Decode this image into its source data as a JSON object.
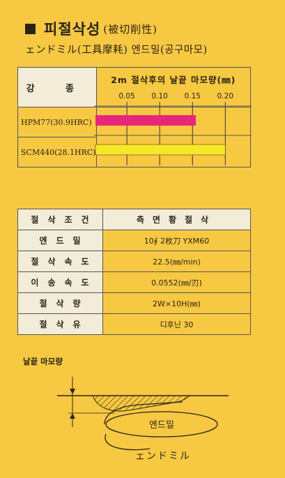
{
  "title": {
    "main": "피절삭성",
    "paren": "(被切削性)"
  },
  "subtitle": "ェンドミル(工具摩耗) 엔드밀(공구마모)",
  "wear_table": {
    "header_left": "강 종",
    "header_chart": "2m 절삭후의 날끝 마모량(㎜)",
    "rows": [
      {
        "label": "HPM77(30.9HRC)",
        "color": "#e8267a"
      },
      {
        "label": "SCM440(28.1HRC)",
        "color": "#f5e628"
      }
    ]
  },
  "chart_data": {
    "type": "bar",
    "orientation": "horizontal",
    "title": "2m 절삭후의 날끝 마모량(㎜)",
    "categories": [
      "HPM77(30.9HRC)",
      "SCM440(28.1HRC)"
    ],
    "values": [
      0.155,
      0.2
    ],
    "xticks": [
      "0.05",
      "0.10",
      "0.15",
      "0.20"
    ],
    "xlim": [
      0,
      0.24
    ],
    "grid": true,
    "colors": [
      "#e8267a",
      "#f5e628"
    ]
  },
  "conditions": {
    "header_left": "절삭조건",
    "header_right": "측면황절삭",
    "rows": [
      {
        "label": "엔드밀",
        "value": "10∮  2枚刀  YXM60"
      },
      {
        "label": "절삭속도",
        "value": "22.5(㎜/min)"
      },
      {
        "label": "이송속도",
        "value": "0.0552(㎜/刃)"
      },
      {
        "label": "절삭량",
        "value": "2W×10H(㎜)"
      },
      {
        "label": "절삭유",
        "value": "디후닌 30"
      }
    ]
  },
  "diagram": {
    "section_label": "날끝 마모량",
    "tool_label": "엔드밀",
    "tool_label_jp": "ェンドミル"
  }
}
